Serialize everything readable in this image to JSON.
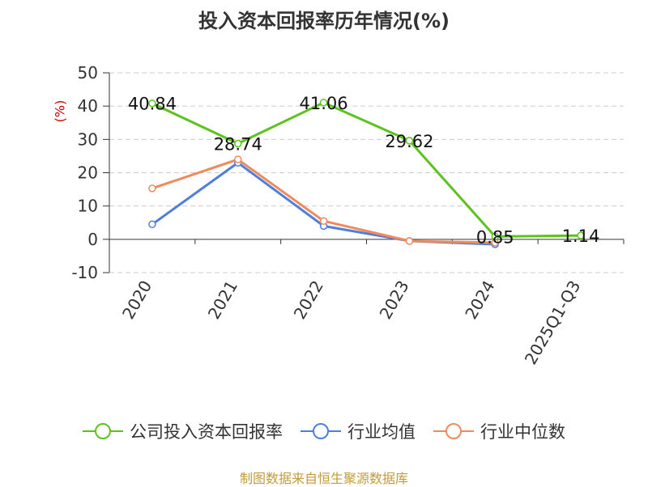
{
  "title": "投入资本回报率历年情况(%)",
  "unit_label": "(%)",
  "source": "制图数据来自恒生聚源数据库",
  "colors": {
    "roic": "#5cc21e",
    "industry_avg": "#4f7fdc",
    "industry_median": "#f08a5d",
    "grid": "#cccccc",
    "axis": "#333333",
    "unit": "#cc0000",
    "source": "#c49a3a"
  },
  "legend": [
    {
      "label": "公司投入资本回报率",
      "color": "#5cc21e"
    },
    {
      "label": "行业均值",
      "color": "#4f7fdc"
    },
    {
      "label": "行业中位数",
      "color": "#f08a5d"
    }
  ],
  "chart_data": {
    "type": "line",
    "title": "投入资本回报率历年情况(%)",
    "ylabel": "(%)",
    "categories": [
      "2020",
      "2021",
      "2022",
      "2023",
      "2024",
      "2025Q1-Q3"
    ],
    "ylim": [
      -10,
      50
    ],
    "yticks": [
      -10,
      0,
      10,
      20,
      30,
      40,
      50
    ],
    "grid": true,
    "legend_position": "bottom",
    "series": [
      {
        "name": "公司投入资本回报率",
        "values": [
          40.84,
          28.74,
          41.06,
          29.62,
          0.85,
          1.14
        ],
        "labeled": true
      },
      {
        "name": "行业均值",
        "values": [
          4.5,
          23.0,
          4.0,
          -0.5,
          -1.5,
          null
        ],
        "labeled": false
      },
      {
        "name": "行业中位数",
        "values": [
          15.3,
          24.0,
          5.5,
          -0.5,
          -1.0,
          null
        ],
        "labeled": false
      }
    ],
    "data_labels": [
      "40.84",
      "28.74",
      "41.06",
      "29.62",
      "0.85",
      "1.14"
    ]
  }
}
